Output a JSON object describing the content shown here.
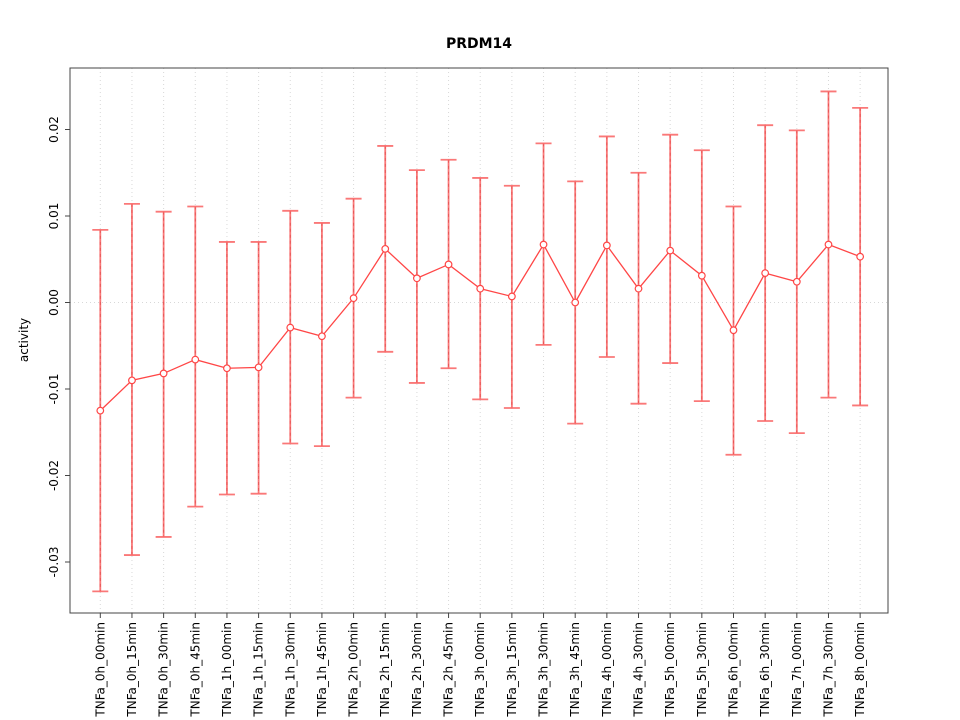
{
  "window": {
    "title": "PRDM14"
  },
  "chart_data": {
    "type": "line",
    "title": "PRDM14",
    "xlabel": "",
    "ylabel": "activity",
    "legend": "none",
    "point_style": "open-circle",
    "error_bars": true,
    "grid": "dotted vertical line at each category, dotted horizontal line at y=0",
    "ylim": [
      -0.036,
      0.027
    ],
    "categories": [
      "TNFa_0h_00min",
      "TNFa_0h_15min",
      "TNFa_0h_30min",
      "TNFa_0h_45min",
      "TNFa_1h_00min",
      "TNFa_1h_15min",
      "TNFa_1h_30min",
      "TNFa_1h_45min",
      "TNFa_2h_00min",
      "TNFa_2h_15min",
      "TNFa_2h_30min",
      "TNFa_2h_45min",
      "TNFa_3h_00min",
      "TNFa_3h_15min",
      "TNFa_3h_30min",
      "TNFa_3h_45min",
      "TNFa_4h_00min",
      "TNFa_4h_30min",
      "TNFa_5h_00min",
      "TNFa_5h_30min",
      "TNFa_6h_00min",
      "TNFa_6h_30min",
      "TNFa_7h_00min",
      "TNFa_7h_30min",
      "TNFa_8h_00min"
    ],
    "series": [
      {
        "name": "activity",
        "values": [
          -0.0125,
          -0.009,
          -0.0082,
          -0.0066,
          -0.0076,
          -0.0075,
          -0.0029,
          -0.0039,
          0.0005,
          0.0062,
          0.0028,
          0.0044,
          0.0016,
          0.0007,
          0.0067,
          0.0,
          0.0066,
          0.0016,
          0.006,
          0.0031,
          -0.0032,
          0.0034,
          0.0024,
          0.0067,
          0.0053
        ]
      },
      {
        "name": "upper_error",
        "values": [
          0.0084,
          0.0114,
          0.0105,
          0.0111,
          0.007,
          0.007,
          0.0106,
          0.0092,
          0.012,
          0.0181,
          0.0153,
          0.0165,
          0.0144,
          0.0135,
          0.0184,
          0.014,
          0.0192,
          0.015,
          0.0194,
          0.0176,
          0.0111,
          0.0205,
          0.0199,
          0.0244,
          0.0225
        ]
      },
      {
        "name": "lower_error",
        "values": [
          -0.0334,
          -0.0292,
          -0.0271,
          -0.0236,
          -0.0222,
          -0.0221,
          -0.0163,
          -0.0166,
          -0.011,
          -0.0057,
          -0.0093,
          -0.0076,
          -0.0112,
          -0.0122,
          -0.0049,
          -0.014,
          -0.0063,
          -0.0117,
          -0.007,
          -0.0114,
          -0.0176,
          -0.0137,
          -0.0151,
          -0.011,
          -0.0119
        ]
      }
    ],
    "yticks": {
      "values": [
        -0.03,
        -0.02,
        -0.01,
        0.0,
        0.01,
        0.02
      ],
      "labels": [
        "-0.03",
        "-0.02",
        "-0.01",
        "0.00",
        "0.01",
        "0.02"
      ]
    },
    "colors": {
      "series_line": "#ff4646",
      "error_bar": "rgba(250,105,105,0.9)",
      "error_bar_core": "rgba(215,60,60,0.55)",
      "grid": "#d8d8d8",
      "frame": "#444444",
      "text": "#000000",
      "background": "#ffffff"
    }
  }
}
